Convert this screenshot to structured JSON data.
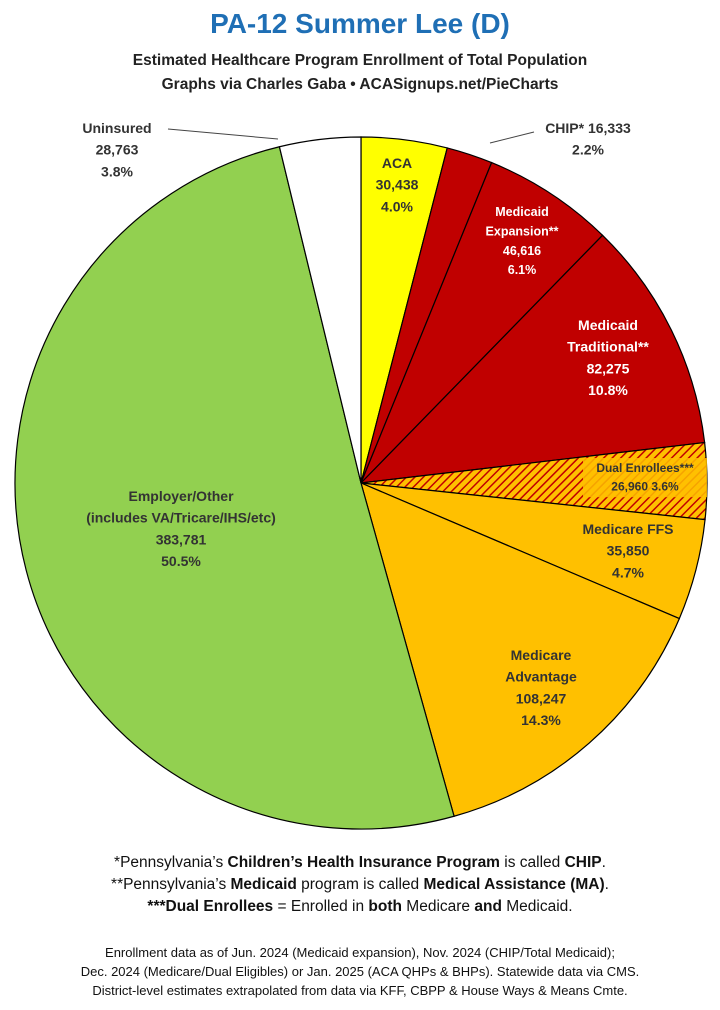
{
  "title": "PA-12 Summer Lee (D)",
  "subtitle_line1": "Estimated Healthcare Program Enrollment of Total Population",
  "subtitle_line2": "Graphs via Charles Gaba  •  ACASignups.net/PieCharts",
  "footnotes": {
    "fn1": {
      "pre": "*Pennsylvania’s ",
      "b1": "Children’s Health Insurance Program",
      "mid": " is called ",
      "b2": "CHIP",
      "post": "."
    },
    "fn2": {
      "pre": "**Pennsylvania’s ",
      "b1": "Medicaid",
      "mid": " program is called ",
      "b2": "Medical Assistance (MA)",
      "post": "."
    },
    "fn3": {
      "b1": "***Dual Enrollees",
      "mid1": " = Enrolled in ",
      "b2": "both",
      "mid2": " Medicare ",
      "b3": "and",
      "post": " Medicaid."
    }
  },
  "sources": [
    "Enrollment data as of Jun. 2024 (Medicaid expansion), Nov. 2024 (CHIP/Total Medicaid);",
    "Dec. 2024 (Medicare/Dual Eligibles) or Jan. 2025 (ACA QHPs & BHPs). Statewide data via CMS.",
    "District-level estimates extrapolated from data via KFF, CBPP & House Ways & Means Cmte."
  ],
  "chart_data": {
    "type": "pie",
    "title": "PA-12 Summer Lee (D)",
    "slices": [
      {
        "name": "ACA",
        "label_lines": [
          "ACA"
        ],
        "value": 30438,
        "value_text": "30,438",
        "percent": "4.0%",
        "color": "#ffff00",
        "text_color": "#333333"
      },
      {
        "name": "CHIP*",
        "label_lines": [
          "CHIP* 16,333"
        ],
        "value": 16333,
        "value_text": "16,333",
        "percent": "2.2%",
        "color": "#c00000",
        "text_color": "#333333"
      },
      {
        "name": "Medicaid Expansion**",
        "label_lines": [
          "Medicaid",
          "Expansion**"
        ],
        "value": 46616,
        "value_text": "46,616",
        "percent": "6.1%",
        "color": "#c00000",
        "text_color": "#ffffff"
      },
      {
        "name": "Medicaid Traditional**",
        "label_lines": [
          "Medicaid",
          "Traditional**"
        ],
        "value": 82275,
        "value_text": "82,275",
        "percent": "10.8%",
        "color": "#c00000",
        "text_color": "#ffffff"
      },
      {
        "name": "Dual Enrollees***",
        "label_lines": [
          "Dual Enrollees***"
        ],
        "value": 26960,
        "value_text": "26,960",
        "percent": "3.6%",
        "color": "hatched",
        "text_color": "#333333"
      },
      {
        "name": "Medicare FFS",
        "label_lines": [
          "Medicare FFS"
        ],
        "value": 35850,
        "value_text": "35,850",
        "percent": "4.7%",
        "color": "#ffc000",
        "text_color": "#333333"
      },
      {
        "name": "Medicare Advantage",
        "label_lines": [
          "Medicare",
          "Advantage"
        ],
        "value": 108247,
        "value_text": "108,247",
        "percent": "14.3%",
        "color": "#ffc000",
        "text_color": "#333333"
      },
      {
        "name": "Employer/Other",
        "label_lines": [
          "Employer/Other",
          "(includes VA/Tricare/IHS/etc)"
        ],
        "value": 383781,
        "value_text": "383,781",
        "percent": "50.5%",
        "color": "#92d050",
        "text_color": "#333333"
      },
      {
        "name": "Uninsured",
        "label_lines": [
          "Uninsured"
        ],
        "value": 28763,
        "value_text": "28,763",
        "percent": "3.8%",
        "color": "#ffffff",
        "text_color": "#333333"
      }
    ],
    "legend": "none"
  }
}
